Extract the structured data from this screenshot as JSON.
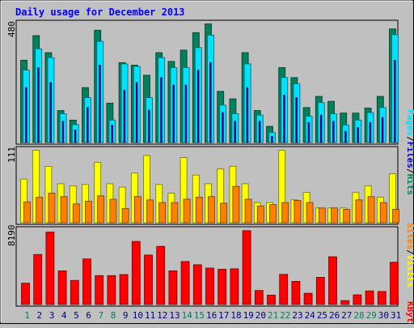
{
  "title": "Daily usage for December 2013",
  "colors": {
    "background": "#c0c0c0",
    "frame": "#000000",
    "title": "#0000ff",
    "hits": "#00805c",
    "files": "#00e0ff",
    "pages": "#0000c0",
    "visits": "#ffff00",
    "sites": "#ff8000",
    "kbytes": "#ff0000",
    "weekday_label": "#000080",
    "weekend_label": "#00805c"
  },
  "chart_data": [
    {
      "type": "bar",
      "name": "hits-files-pages",
      "ymax_label": "480",
      "ylim": [
        0,
        480
      ],
      "legend": [
        {
          "label": "Pages",
          "color": "#0000c0"
        },
        {
          "label": "/",
          "color": "#000000"
        },
        {
          "label": "Files",
          "color": "#00e0ff"
        },
        {
          "label": "/",
          "color": "#000000"
        },
        {
          "label": "Hits",
          "color": "#00805c"
        }
      ],
      "categories": [
        "1",
        "2",
        "3",
        "4",
        "5",
        "6",
        "7",
        "8",
        "9",
        "10",
        "11",
        "12",
        "13",
        "14",
        "15",
        "16",
        "17",
        "18",
        "19",
        "20",
        "21",
        "22",
        "23",
        "24",
        "25",
        "26",
        "27",
        "28",
        "29",
        "30",
        "31"
      ],
      "series": [
        {
          "name": "Hits",
          "values": [
            330,
            428,
            360,
            128,
            90,
            220,
            450,
            158,
            320,
            310,
            270,
            360,
            325,
            370,
            440,
            475,
            205,
            175,
            360,
            128,
            65,
            300,
            260,
            140,
            185,
            165,
            118,
            118,
            138,
            185,
            455
          ]
        },
        {
          "name": "Files",
          "values": [
            290,
            375,
            340,
            115,
            72,
            180,
            405,
            90,
            315,
            305,
            180,
            340,
            300,
            300,
            380,
            430,
            150,
            115,
            315,
            110,
            40,
            260,
            235,
            105,
            160,
            115,
            70,
            90,
            120,
            140,
            432
          ]
        },
        {
          "name": "Pages",
          "values": [
            220,
            300,
            240,
            85,
            50,
            140,
            310,
            70,
            210,
            240,
            130,
            260,
            230,
            230,
            290,
            320,
            120,
            85,
            220,
            85,
            25,
            190,
            180,
            80,
            110,
            85,
            45,
            60,
            80,
            100,
            330
          ]
        }
      ]
    },
    {
      "type": "bar",
      "name": "visits-sites",
      "ymax_label": "111",
      "ylim": [
        0,
        111
      ],
      "legend": [
        {
          "label": "Sites",
          "color": "#ff8000"
        },
        {
          "label": "/",
          "color": "#000000"
        },
        {
          "label": "Visits",
          "color": "#ffff00"
        }
      ],
      "categories": [
        "1",
        "2",
        "3",
        "4",
        "5",
        "6",
        "7",
        "8",
        "9",
        "10",
        "11",
        "12",
        "13",
        "14",
        "15",
        "16",
        "17",
        "18",
        "19",
        "20",
        "21",
        "22",
        "23",
        "24",
        "25",
        "26",
        "27",
        "28",
        "29",
        "30",
        "31"
      ],
      "series": [
        {
          "name": "Visits",
          "values": [
            65,
            108,
            84,
            58,
            55,
            57,
            90,
            58,
            53,
            74,
            100,
            57,
            44,
            97,
            71,
            58,
            80,
            84,
            58,
            30,
            30,
            108,
            34,
            45,
            22,
            22,
            22,
            45,
            55,
            38,
            73
          ]
        },
        {
          "name": "Sites",
          "values": [
            31,
            38,
            44,
            39,
            28,
            32,
            40,
            35,
            21,
            39,
            34,
            30,
            30,
            35,
            38,
            39,
            29,
            54,
            35,
            25,
            27,
            30,
            33,
            30,
            22,
            22,
            20,
            34,
            39,
            30,
            20
          ]
        }
      ]
    },
    {
      "type": "bar",
      "name": "kbytes",
      "ymax_label": "8190",
      "ylim": [
        0,
        8190
      ],
      "legend": [
        {
          "label": "KBytes",
          "color": "#ff0000"
        }
      ],
      "categories": [
        "1",
        "2",
        "3",
        "4",
        "5",
        "6",
        "7",
        "8",
        "9",
        "10",
        "11",
        "12",
        "13",
        "14",
        "15",
        "16",
        "17",
        "18",
        "19",
        "20",
        "21",
        "22",
        "23",
        "24",
        "25",
        "26",
        "27",
        "28",
        "29",
        "30",
        "31"
      ],
      "series": [
        {
          "name": "KBytes",
          "values": [
            2320,
            5440,
            7880,
            3660,
            2620,
            4960,
            3140,
            3140,
            3260,
            6860,
            5380,
            6320,
            3660,
            4680,
            4320,
            3960,
            3840,
            3880,
            8030,
            1520,
            1020,
            3280,
            2520,
            1220,
            2960,
            5200,
            420,
            1060,
            1480,
            1420,
            4600
          ]
        }
      ]
    }
  ],
  "x_axis": {
    "labels": [
      "1",
      "2",
      "3",
      "4",
      "5",
      "6",
      "7",
      "8",
      "9",
      "10",
      "11",
      "12",
      "13",
      "14",
      "15",
      "16",
      "17",
      "18",
      "19",
      "20",
      "21",
      "22",
      "23",
      "24",
      "25",
      "26",
      "27",
      "28",
      "29",
      "30",
      "31"
    ],
    "weekend_days": [
      "1",
      "7",
      "8",
      "14",
      "15",
      "21",
      "22",
      "28",
      "29"
    ]
  }
}
